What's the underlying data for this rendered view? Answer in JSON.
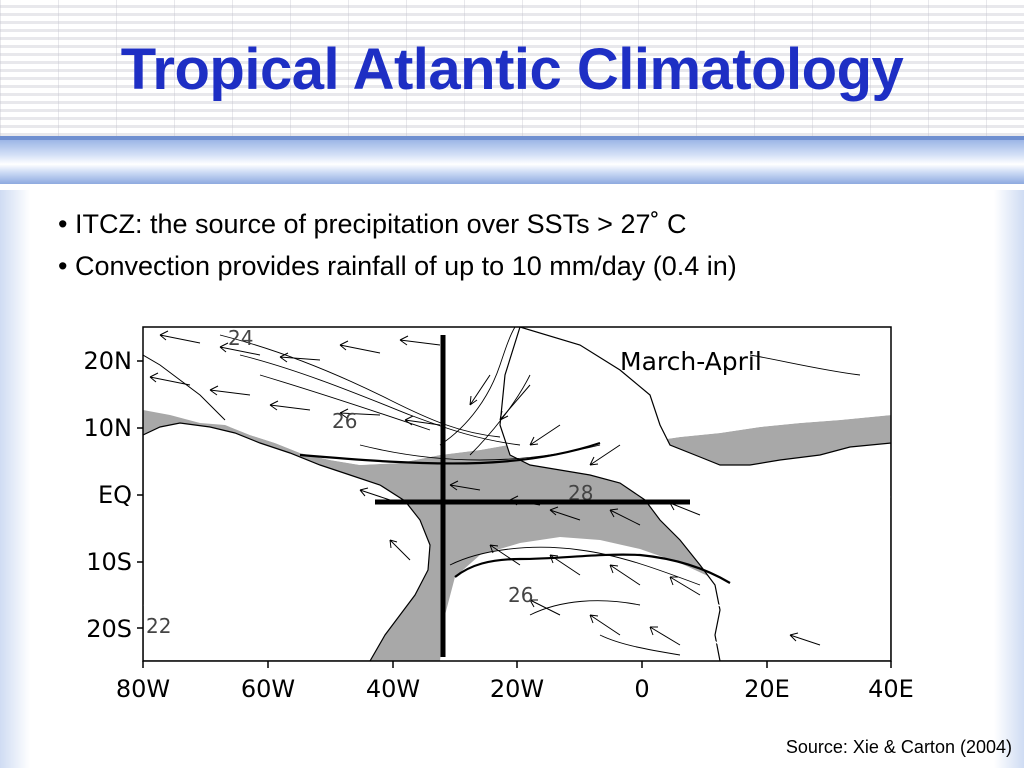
{
  "slide": {
    "title": "Tropical Atlantic Climatology",
    "bullets": [
      "• ITCZ: the source of precipitation over SSTs > 27˚ C",
      "• Convection provides rainfall of up to 10 mm/day (0.4 in)"
    ],
    "source": "Source: Xie & Carton (2004)"
  },
  "map": {
    "season_label": "March-April",
    "lat_labels": [
      "20N",
      "10N",
      "EQ",
      "10S",
      "20S"
    ],
    "lon_labels": [
      "80W",
      "60W",
      "40W",
      "20W",
      "0",
      "20E",
      "40E"
    ],
    "contour_labels": [
      "24",
      "26",
      "28",
      "26",
      "22"
    ],
    "colors": {
      "warm_shade": "#a8a8a8",
      "land": "#ffffff",
      "ink": "#000000"
    }
  }
}
